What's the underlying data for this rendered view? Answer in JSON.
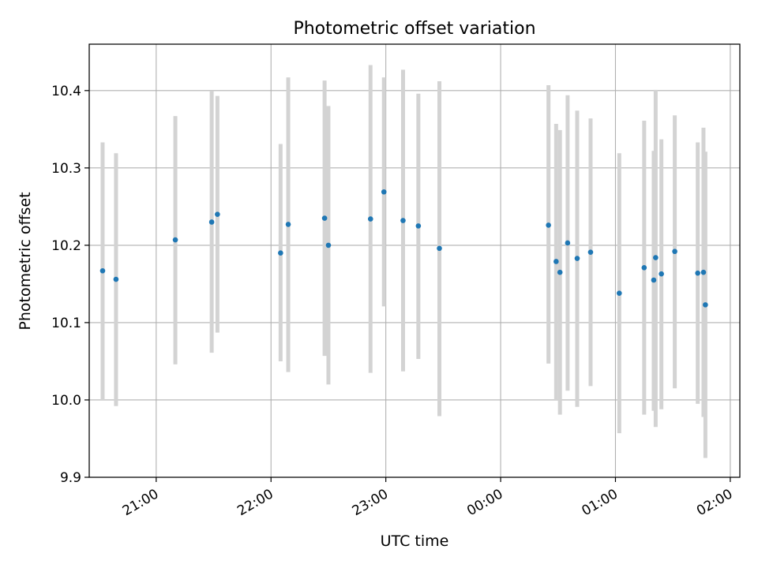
{
  "colors": {
    "point": "#1f77b4",
    "errorbar": "#d3d3d3",
    "grid": "#b0b0b0",
    "axis": "#000000"
  },
  "chart_data": {
    "type": "scatter",
    "title": "Photometric offset variation",
    "xlabel": "UTC time",
    "ylabel": "Photometric offset",
    "grid": true,
    "x_unit": "UTC time (hh:mm)",
    "xlim": [
      "20:25",
      "02:05"
    ],
    "ylim": [
      9.9,
      10.46
    ],
    "x_ticks": [
      "21:00",
      "22:00",
      "23:00",
      "00:00",
      "01:00",
      "02:00"
    ],
    "y_ticks": [
      9.9,
      10.0,
      10.1,
      10.2,
      10.3,
      10.4
    ],
    "y_tick_labels": [
      "9.9",
      "10.0",
      "10.1",
      "10.2",
      "10.3",
      "10.4"
    ],
    "points": [
      {
        "x": "20:32",
        "y": 10.167,
        "ylow": 10.0,
        "yhigh": 10.333
      },
      {
        "x": "20:39",
        "y": 10.156,
        "ylow": 9.992,
        "yhigh": 10.319
      },
      {
        "x": "21:10",
        "y": 10.207,
        "ylow": 10.046,
        "yhigh": 10.367
      },
      {
        "x": "21:29",
        "y": 10.23,
        "ylow": 10.061,
        "yhigh": 10.4
      },
      {
        "x": "21:32",
        "y": 10.24,
        "ylow": 10.087,
        "yhigh": 10.393
      },
      {
        "x": "22:05",
        "y": 10.19,
        "ylow": 10.05,
        "yhigh": 10.331
      },
      {
        "x": "22:09",
        "y": 10.227,
        "ylow": 10.036,
        "yhigh": 10.417
      },
      {
        "x": "22:28",
        "y": 10.235,
        "ylow": 10.057,
        "yhigh": 10.413
      },
      {
        "x": "22:30",
        "y": 10.2,
        "ylow": 10.02,
        "yhigh": 10.38
      },
      {
        "x": "22:52",
        "y": 10.234,
        "ylow": 10.035,
        "yhigh": 10.433
      },
      {
        "x": "22:59",
        "y": 10.269,
        "ylow": 10.121,
        "yhigh": 10.417
      },
      {
        "x": "23:09",
        "y": 10.232,
        "ylow": 10.037,
        "yhigh": 10.427
      },
      {
        "x": "23:17",
        "y": 10.225,
        "ylow": 10.053,
        "yhigh": 10.396
      },
      {
        "x": "23:28",
        "y": 10.196,
        "ylow": 9.979,
        "yhigh": 10.412
      },
      {
        "x": "00:25",
        "y": 10.226,
        "ylow": 10.047,
        "yhigh": 10.407
      },
      {
        "x": "00:29",
        "y": 10.179,
        "ylow": 10.0,
        "yhigh": 10.357
      },
      {
        "x": "00:31",
        "y": 10.165,
        "ylow": 9.981,
        "yhigh": 10.349
      },
      {
        "x": "00:35",
        "y": 10.203,
        "ylow": 10.012,
        "yhigh": 10.394
      },
      {
        "x": "00:40",
        "y": 10.183,
        "ylow": 9.991,
        "yhigh": 10.374
      },
      {
        "x": "00:47",
        "y": 10.191,
        "ylow": 10.018,
        "yhigh": 10.364
      },
      {
        "x": "01:02",
        "y": 10.138,
        "ylow": 9.957,
        "yhigh": 10.319
      },
      {
        "x": "01:15",
        "y": 10.171,
        "ylow": 9.981,
        "yhigh": 10.361
      },
      {
        "x": "01:20",
        "y": 10.155,
        "ylow": 9.986,
        "yhigh": 10.322
      },
      {
        "x": "01:21",
        "y": 10.184,
        "ylow": 9.965,
        "yhigh": 10.401
      },
      {
        "x": "01:24",
        "y": 10.163,
        "ylow": 9.988,
        "yhigh": 10.337
      },
      {
        "x": "01:31",
        "y": 10.192,
        "ylow": 10.015,
        "yhigh": 10.368
      },
      {
        "x": "01:43",
        "y": 10.164,
        "ylow": 9.995,
        "yhigh": 10.333
      },
      {
        "x": "01:46",
        "y": 10.165,
        "ylow": 9.978,
        "yhigh": 10.352
      },
      {
        "x": "01:47",
        "y": 10.123,
        "ylow": 9.925,
        "yhigh": 10.321
      }
    ]
  }
}
